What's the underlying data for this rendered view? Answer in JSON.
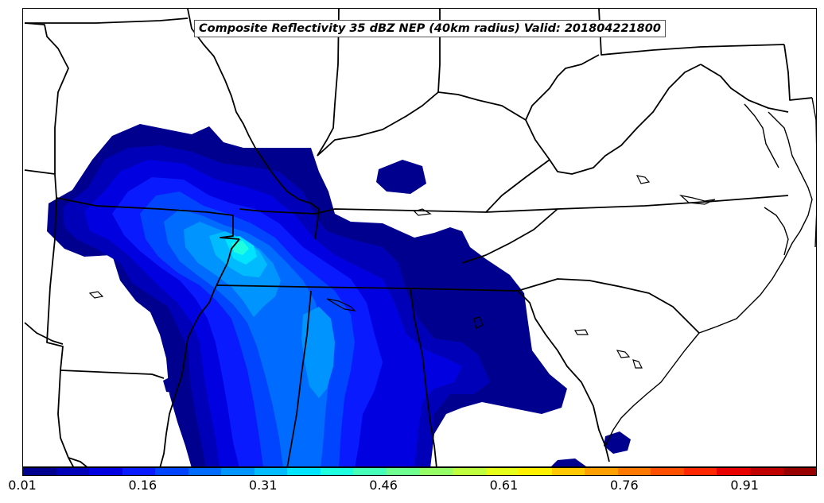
{
  "title": "Composite Reflectivity 35 dBZ NEP (40km radius) Valid: 201804221800",
  "colorbar": {
    "colors": [
      "#00008f",
      "#0000b8",
      "#0000e0",
      "#0a1aff",
      "#0044ff",
      "#006cff",
      "#0094ff",
      "#00bcff",
      "#00e4ff",
      "#1effe0",
      "#46ffb8",
      "#6eff90",
      "#96ff68",
      "#beff40",
      "#e6ff18",
      "#fff000",
      "#ffc800",
      "#ffa000",
      "#ff7800",
      "#ff5000",
      "#ff2800",
      "#e80000",
      "#c00000",
      "#980000"
    ],
    "tick_labels": [
      "0.01",
      "0.16",
      "0.31",
      "0.46",
      "0.61",
      "0.76",
      "0.91"
    ],
    "tick_values": [
      0.01,
      0.16,
      0.31,
      0.46,
      0.61,
      0.76,
      0.91
    ],
    "range": [
      0.01,
      1.0
    ]
  }
}
